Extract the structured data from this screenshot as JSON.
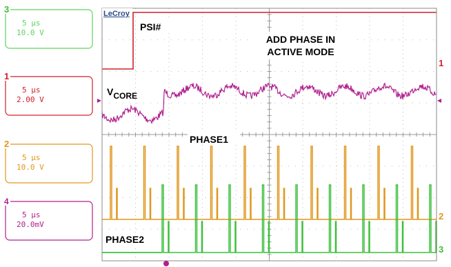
{
  "scope": {
    "brand": "LeCroy",
    "channels": [
      {
        "number": "3",
        "timebase": "5 µs",
        "scale": "10.0 V"
      },
      {
        "number": "1",
        "timebase": "5 µs",
        "scale": "2.00 V"
      },
      {
        "number": "2",
        "timebase": "5 µs",
        "scale": "10.0 V"
      },
      {
        "number": "4",
        "timebase": "5 µs",
        "scale": "20.0mV"
      }
    ],
    "annotations": {
      "psi": "PSI#",
      "add_phase": [
        "ADD PHASE IN",
        "ACTIVE MODE"
      ],
      "vcore": "V",
      "vcore_sub": "CORE",
      "phase1": "PHASE1",
      "phase2": "PHASE2"
    },
    "markers": [
      "1",
      "2",
      "3"
    ]
  }
}
